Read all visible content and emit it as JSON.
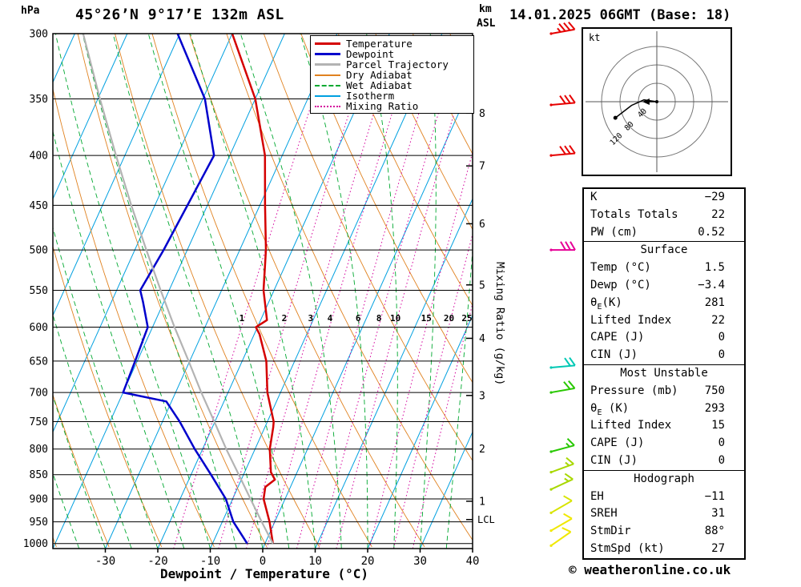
{
  "header": {
    "station_title": "45°26’N 9°17’E 132m ASL",
    "datetime_title": "14.01.2025 06GMT (Base: 18)",
    "pressure_unit": "hPa",
    "altitude_unit_km": "km",
    "altitude_unit_asl": "ASL"
  },
  "legend": {
    "items": [
      {
        "label": "Temperature",
        "color": "#d40000",
        "style": "solid",
        "weight": 3
      },
      {
        "label": "Dewpoint",
        "color": "#0000cc",
        "style": "solid",
        "weight": 3
      },
      {
        "label": "Parcel Trajectory",
        "color": "#b3b3b3",
        "style": "solid",
        "weight": 3
      },
      {
        "label": "Dry Adiabat",
        "color": "#e08220",
        "style": "solid",
        "weight": 2
      },
      {
        "label": "Wet Adiabat",
        "color": "#00a830",
        "style": "dashed",
        "weight": 2
      },
      {
        "label": "Isotherm",
        "color": "#00a0e0",
        "style": "solid",
        "weight": 2
      },
      {
        "label": "Mixing Ratio",
        "color": "#d4009c",
        "style": "dotted",
        "weight": 2
      }
    ]
  },
  "chart_data": {
    "type": "line",
    "subtype": "skew-t-log-p",
    "title": "45°26’N 9°17’E 132m ASL",
    "xlabel": "Dewpoint / Temperature (°C)",
    "ylabel_left": "hPa",
    "ylabel_right": "Mixing Ratio (g/kg)",
    "x_ticks": [
      -30,
      -20,
      -10,
      0,
      10,
      20,
      30,
      40
    ],
    "pressure_levels": [
      300,
      350,
      400,
      450,
      500,
      550,
      600,
      650,
      700,
      750,
      800,
      850,
      900,
      950,
      1000
    ],
    "isotherms": {
      "min": -120,
      "max": 40,
      "step": 10,
      "color": "#00a0e0"
    },
    "dry_adiabats": {
      "min": -40,
      "max": 250,
      "step": 10,
      "color": "#e08220"
    },
    "wet_adiabats": {
      "min": -40,
      "max": 40,
      "step": 5,
      "color": "#00a830"
    },
    "mixing_ratio": {
      "values": [
        1,
        2,
        3,
        4,
        6,
        8,
        10,
        15,
        20,
        25
      ],
      "label_pressure": 598,
      "color": "#d4009c"
    },
    "km_markers": [
      {
        "label": "8",
        "p": 362
      },
      {
        "label": "7",
        "p": 410
      },
      {
        "label": "6",
        "p": 470
      },
      {
        "label": "5",
        "p": 543
      },
      {
        "label": "4",
        "p": 616
      },
      {
        "label": "3",
        "p": 705
      },
      {
        "label": "2",
        "p": 800
      },
      {
        "label": "1",
        "p": 905
      }
    ],
    "lcl_marker": {
      "label": "LCL",
      "p": 945
    },
    "series": [
      {
        "name": "Temperature",
        "color": "#d40000",
        "width": 2.5,
        "points": [
          [
            1000,
            1.5
          ],
          [
            950,
            -1.0
          ],
          [
            900,
            -4.1
          ],
          [
            875,
            -4.8
          ],
          [
            860,
            -3.6
          ],
          [
            845,
            -5.0
          ],
          [
            800,
            -7.2
          ],
          [
            760,
            -8.4
          ],
          [
            750,
            -8.8
          ],
          [
            700,
            -12.5
          ],
          [
            650,
            -15.4
          ],
          [
            610,
            -19.0
          ],
          [
            600,
            -20.3
          ],
          [
            590,
            -18.8
          ],
          [
            550,
            -22.0
          ],
          [
            500,
            -25.0
          ],
          [
            450,
            -29.0
          ],
          [
            400,
            -33.3
          ],
          [
            350,
            -40.0
          ],
          [
            300,
            -50.0
          ]
        ]
      },
      {
        "name": "Dewpoint",
        "color": "#0000cc",
        "width": 2.5,
        "points": [
          [
            1000,
            -3.4
          ],
          [
            950,
            -7.9
          ],
          [
            900,
            -11.3
          ],
          [
            850,
            -16.2
          ],
          [
            800,
            -21.5
          ],
          [
            750,
            -26.7
          ],
          [
            715,
            -31.0
          ],
          [
            700,
            -40.0
          ],
          [
            650,
            -40.4
          ],
          [
            600,
            -40.9
          ],
          [
            565,
            -44.0
          ],
          [
            550,
            -45.5
          ],
          [
            500,
            -44.5
          ],
          [
            450,
            -43.8
          ],
          [
            400,
            -43.0
          ],
          [
            350,
            -49.6
          ],
          [
            300,
            -60.4
          ]
        ]
      },
      {
        "name": "Parcel Trajectory",
        "color": "#b3b3b3",
        "width": 2.2,
        "points": [
          [
            1000,
            1.5
          ],
          [
            950,
            -2.5
          ],
          [
            900,
            -6.6
          ],
          [
            850,
            -10.9
          ],
          [
            800,
            -15.5
          ],
          [
            750,
            -20.1
          ],
          [
            700,
            -25.1
          ],
          [
            650,
            -30.2
          ],
          [
            600,
            -35.8
          ],
          [
            550,
            -41.6
          ],
          [
            500,
            -47.8
          ],
          [
            450,
            -54.5
          ],
          [
            400,
            -61.7
          ],
          [
            350,
            -69.6
          ],
          [
            300,
            -78.4
          ]
        ]
      }
    ]
  },
  "wind_barbs": [
    {
      "p": 1005,
      "speed_kt": 10,
      "dir_deg": 55,
      "color": "#f0e800"
    },
    {
      "p": 970,
      "speed_kt": 10,
      "dir_deg": 60,
      "color": "#f0e800"
    },
    {
      "p": 930,
      "speed_kt": 10,
      "dir_deg": 60,
      "color": "#d8e400"
    },
    {
      "p": 880,
      "speed_kt": 15,
      "dir_deg": 65,
      "color": "#a8d800"
    },
    {
      "p": 845,
      "speed_kt": 15,
      "dir_deg": 70,
      "color": "#a8d800"
    },
    {
      "p": 805,
      "speed_kt": 15,
      "dir_deg": 75,
      "color": "#28c800"
    },
    {
      "p": 700,
      "speed_kt": 20,
      "dir_deg": 80,
      "color": "#28c800"
    },
    {
      "p": 660,
      "speed_kt": 20,
      "dir_deg": 85,
      "color": "#00c8b4"
    },
    {
      "p": 500,
      "speed_kt": 30,
      "dir_deg": 90,
      "color": "#e60096"
    },
    {
      "p": 400,
      "speed_kt": 30,
      "dir_deg": 85,
      "color": "#e60000"
    },
    {
      "p": 355,
      "speed_kt": 30,
      "dir_deg": 85,
      "color": "#e60000"
    },
    {
      "p": 300,
      "speed_kt": 35,
      "dir_deg": 80,
      "color": "#e60000"
    }
  ],
  "hodograph": {
    "unit_label": "kt",
    "rings_kt": [
      40,
      80,
      120
    ],
    "ring_labels": [
      "40",
      "80",
      "120"
    ],
    "trace_uv_kt": [
      [
        0,
        0
      ],
      [
        -28,
        4
      ],
      [
        -55,
        -8
      ],
      [
        -90,
        -35
      ]
    ],
    "storm_motion_uv_kt": [
      -28,
      0
    ]
  },
  "table": {
    "sections": [
      {
        "header": null,
        "rows": [
          {
            "id": "k-index",
            "label": "K",
            "value": "−29"
          },
          {
            "id": "totals-totals",
            "label": "Totals Totals",
            "value": "22"
          },
          {
            "id": "pw",
            "label": "PW (cm)",
            "value": "0.52"
          }
        ]
      },
      {
        "header": "Surface",
        "rows": [
          {
            "id": "surface-temp",
            "label": "Temp (°C)",
            "value": "1.5"
          },
          {
            "id": "surface-dewp",
            "label": "Dewp (°C)",
            "value": "−3.4"
          },
          {
            "id": "surface-theta-e",
            "label_pre": "θ",
            "label_sub": "E",
            "label_post": "(K)",
            "value": "281"
          },
          {
            "id": "surface-lifted-index",
            "label": "Lifted Index",
            "value": "22"
          },
          {
            "id": "surface-cape",
            "label": "CAPE (J)",
            "value": "0"
          },
          {
            "id": "surface-cin",
            "label": "CIN (J)",
            "value": "0"
          }
        ]
      },
      {
        "header": "Most Unstable",
        "rows": [
          {
            "id": "mu-pressure",
            "label": "Pressure (mb)",
            "value": "750"
          },
          {
            "id": "mu-theta-e",
            "label_pre": "θ",
            "label_sub": "E",
            "label_post": " (K)",
            "value": "293"
          },
          {
            "id": "mu-lifted-index",
            "label": "Lifted Index",
            "value": "15"
          },
          {
            "id": "mu-cape",
            "label": "CAPE (J)",
            "value": "0"
          },
          {
            "id": "mu-cin",
            "label": "CIN (J)",
            "value": "0"
          }
        ]
      },
      {
        "header": "Hodograph",
        "rows": [
          {
            "id": "eh",
            "label": "EH",
            "value": "−11"
          },
          {
            "id": "sreh",
            "label": "SREH",
            "value": "31"
          },
          {
            "id": "stmdir",
            "label": "StmDir",
            "value": "88°"
          },
          {
            "id": "stmspd",
            "label": "StmSpd (kt)",
            "value": "27"
          }
        ]
      }
    ]
  },
  "footer": {
    "copyright": "© weatheronline.co.uk"
  }
}
